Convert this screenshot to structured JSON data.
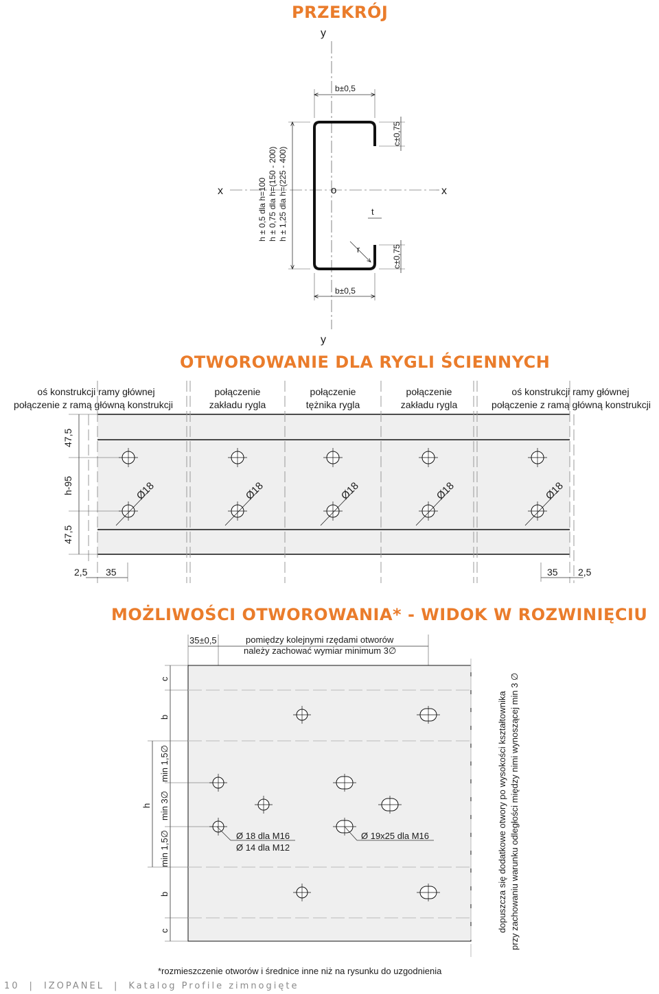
{
  "colors": {
    "accent": "#ea7c2b",
    "line": "#1a1a1a",
    "panel": "#efefef",
    "dash": "#9a9a9a",
    "footer": "#8a8a8a"
  },
  "section1": {
    "title": "PRZEKRÓJ",
    "y_top": "y",
    "y_bottom": "y",
    "x_left": "x",
    "x_right": "x",
    "origin": "o",
    "b_top": "b±0,5",
    "b_bottom": "b±0,5",
    "c_top": "c±0,75",
    "c_bottom": "c±0,75",
    "t": "t",
    "r": "r",
    "h_lines": [
      "h ± 0,5   dla h=100",
      "h ± 0,75 dla h=(150 - 200)",
      "h ± 1,25 dla h=(225 - 400)"
    ]
  },
  "section2": {
    "title": "OTWOROWANIE DLA RYGLI ŚCIENNYCH",
    "labels": [
      [
        "oś konstrukcji ramy głównej",
        "połączenie z ramą główną konstrukcji"
      ],
      [
        "połączenie",
        "zakładu rygla"
      ],
      [
        "połączenie",
        "tężnika rygla"
      ],
      [
        "połączenie",
        "zakładu rygla"
      ],
      [
        "oś konstrukcji ramy głównej",
        "połączenie z ramą główną konstrukcji"
      ]
    ],
    "dim_top": "47,5",
    "dim_mid": "h-95",
    "dim_bottom": "47,5",
    "hole_label": "Ø18",
    "dim_left_a": "2,5",
    "dim_left_b": "35",
    "dim_right_a": "35",
    "dim_right_b": "2,5"
  },
  "section3": {
    "title": "MOŻLIWOŚCI OTWOROWANIA* - WIDOK W ROZWINIĘCIU",
    "dim_35": "35±0,5",
    "note_top": [
      "pomiędzy kolejnymi rzędami otworów",
      "należy zachować wymiar minimum 3∅"
    ],
    "left_dims": [
      "c",
      "b",
      "min 1,5∅",
      "min 3∅",
      "min 1,5∅",
      "b",
      "c"
    ],
    "h_label": "h",
    "hole_round": [
      "Ø 18 dla M16",
      "Ø 14 dla M12"
    ],
    "hole_slot": "Ø 19x25 dla M16",
    "right_note": [
      "dopuszcza się dodatkowe otwory po wysokości kształtownika",
      "przy zachowaniu warunku odległości między nimi wynoszącej min 3 ∅"
    ],
    "footnote": "*rozmieszczenie otworów i średnice inne niż na rysunku do uzgodnienia"
  },
  "footer": {
    "page": "10",
    "brand": "IZOPANEL",
    "catalog": "Katalog Profile zimnogięte"
  }
}
